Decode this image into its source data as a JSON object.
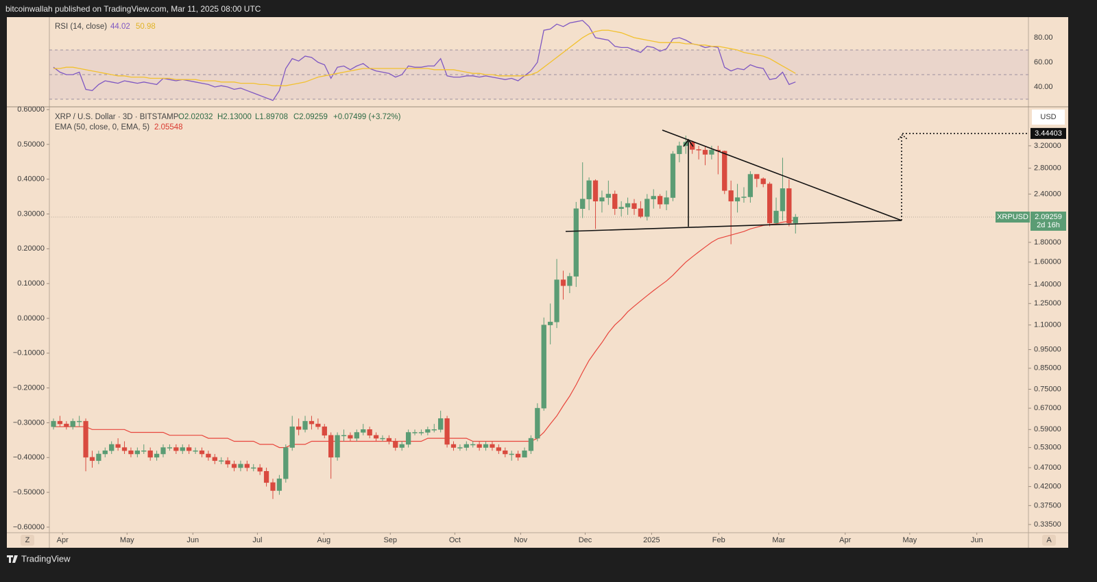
{
  "header": {
    "publisher": "bitcoinwallah published on TradingView.com, Mar 11, 2025 08:00 UTC",
    "brand": "TradingView"
  },
  "chart_data": {
    "type": "candlestick",
    "symbol": "XRP / U.S. Dollar · 3D · BITSTAMP",
    "ohlc_labels": [
      "O2.02032",
      "H2.13000",
      "L1.89708",
      "C2.09259"
    ],
    "change": "+0.07499 (+3.72%)",
    "currency": "USD",
    "ticker": "XRPUSD",
    "countdown": "2d 16h",
    "target": 3.44403,
    "scale_buttons": [
      "Z",
      "A"
    ],
    "up_color": "#5b9c74",
    "down_color": "#d94a3f",
    "log_scale": true,
    "xlim": [
      -0.64,
      151.1
    ],
    "xticks": [
      {
        "value": 1.4,
        "label": "Apr"
      },
      {
        "value": 11.4,
        "label": "May"
      },
      {
        "value": 21.6,
        "label": "Jun"
      },
      {
        "value": 31.6,
        "label": "Jul"
      },
      {
        "value": 41.9,
        "label": "Aug"
      },
      {
        "value": 52.2,
        "label": "Sep"
      },
      {
        "value": 62.2,
        "label": "Oct"
      },
      {
        "value": 72.4,
        "label": "Nov"
      },
      {
        "value": 82.4,
        "label": "Dec"
      },
      {
        "value": 92.7,
        "label": "2025"
      },
      {
        "value": 103.1,
        "label": "Feb"
      },
      {
        "value": 112.4,
        "label": "Mar"
      },
      {
        "value": 122.7,
        "label": "Apr"
      },
      {
        "value": 132.7,
        "label": "May"
      },
      {
        "value": 143.1,
        "label": "Jun"
      }
    ],
    "ylim": [
      0.319,
      4.02
    ],
    "yticks": [
      {
        "value": 3.2,
        "label": "3.20000"
      },
      {
        "value": 2.8,
        "label": "2.80000"
      },
      {
        "value": 2.4,
        "label": "2.40000"
      },
      {
        "value": 1.8,
        "label": "1.80000"
      },
      {
        "value": 1.6,
        "label": "1.60000"
      },
      {
        "value": 1.4,
        "label": "1.40000"
      },
      {
        "value": 1.25,
        "label": "1.25000"
      },
      {
        "value": 1.1,
        "label": "1.10000"
      },
      {
        "value": 0.95,
        "label": "0.95000"
      },
      {
        "value": 0.85,
        "label": "0.85000"
      },
      {
        "value": 0.75,
        "label": "0.75000"
      },
      {
        "value": 0.67,
        "label": "0.67000"
      },
      {
        "value": 0.59,
        "label": "0.59000"
      },
      {
        "value": 0.53,
        "label": "0.53000"
      },
      {
        "value": 0.47,
        "label": "0.47000"
      },
      {
        "value": 0.42,
        "label": "0.42000"
      },
      {
        "value": 0.375,
        "label": "0.37500"
      },
      {
        "value": 0.335,
        "label": "0.33500"
      }
    ],
    "left_ylim": [
      -0.616,
      0.606
    ],
    "left_yticks": [
      {
        "value": 0.6,
        "label": "0.60000"
      },
      {
        "value": 0.5,
        "label": "0.50000"
      },
      {
        "value": 0.4,
        "label": "0.40000"
      },
      {
        "value": 0.3,
        "label": "0.30000"
      },
      {
        "value": 0.2,
        "label": "0.20000"
      },
      {
        "value": 0.1,
        "label": "0.10000"
      },
      {
        "value": 0,
        "label": "0.00000"
      },
      {
        "value": -0.1,
        "label": "−0.10000"
      },
      {
        "value": -0.2,
        "label": "−0.20000"
      },
      {
        "value": -0.3,
        "label": "−0.30000"
      },
      {
        "value": -0.4,
        "label": "−0.40000"
      },
      {
        "value": -0.5,
        "label": "−0.50000"
      },
      {
        "value": -0.6,
        "label": "−0.60000"
      }
    ],
    "candles": {
      "open": [
        0.6,
        0.62,
        0.61,
        0.6,
        0.62,
        0.62,
        0.5,
        0.49,
        0.51,
        0.52,
        0.54,
        0.53,
        0.52,
        0.51,
        0.52,
        0.52,
        0.5,
        0.51,
        0.53,
        0.53,
        0.52,
        0.53,
        0.52,
        0.52,
        0.51,
        0.5,
        0.49,
        0.49,
        0.48,
        0.47,
        0.48,
        0.47,
        0.47,
        0.46,
        0.43,
        0.41,
        0.44,
        0.53,
        0.6,
        0.59,
        0.62,
        0.61,
        0.6,
        0.57,
        0.5,
        0.57,
        0.57,
        0.56,
        0.58,
        0.59,
        0.57,
        0.56,
        0.56,
        0.55,
        0.53,
        0.54,
        0.58,
        0.58,
        0.58,
        0.59,
        0.59,
        0.63,
        0.54,
        0.53,
        0.53,
        0.54,
        0.54,
        0.53,
        0.54,
        0.53,
        0.52,
        0.51,
        0.51,
        0.5,
        0.52,
        0.56,
        0.67,
        1.1,
        1.12,
        1.44,
        1.39,
        1.47,
        2.2,
        2.33,
        2.6,
        2.3,
        2.35,
        2.4,
        2.2,
        2.22,
        2.27,
        2.2,
        2.1,
        2.33,
        2.37,
        2.26,
        2.35,
        3.05,
        3.2,
        3.27,
        3.13,
        3.12,
        3.04,
        3.12,
        3.1,
        2.45,
        2.3,
        2.35,
        2.36,
        2.7,
        2.63,
        2.55,
        2.02,
        2.17,
        2.48,
        2.02032
      ],
      "high": [
        0.63,
        0.64,
        0.62,
        0.63,
        0.64,
        0.63,
        0.52,
        0.52,
        0.53,
        0.55,
        0.56,
        0.55,
        0.53,
        0.53,
        0.54,
        0.53,
        0.52,
        0.54,
        0.54,
        0.54,
        0.54,
        0.54,
        0.53,
        0.53,
        0.52,
        0.51,
        0.5,
        0.5,
        0.49,
        0.49,
        0.49,
        0.48,
        0.48,
        0.47,
        0.44,
        0.45,
        0.54,
        0.64,
        0.63,
        0.64,
        0.64,
        0.63,
        0.61,
        0.58,
        0.58,
        0.59,
        0.58,
        0.59,
        0.61,
        0.6,
        0.58,
        0.57,
        0.57,
        0.56,
        0.55,
        0.59,
        0.59,
        0.59,
        0.6,
        0.61,
        0.66,
        0.64,
        0.55,
        0.54,
        0.55,
        0.55,
        0.55,
        0.55,
        0.55,
        0.54,
        0.53,
        0.52,
        0.52,
        0.53,
        0.57,
        0.69,
        1.15,
        1.25,
        1.63,
        1.52,
        1.5,
        2.29,
        2.9,
        2.65,
        2.62,
        2.45,
        2.6,
        2.45,
        2.3,
        2.35,
        2.33,
        2.3,
        2.4,
        2.47,
        2.4,
        2.45,
        3.1,
        3.28,
        3.4,
        3.3,
        3.2,
        3.18,
        3.2,
        3.2,
        3.11,
        2.6,
        2.55,
        2.5,
        2.75,
        2.7,
        2.65,
        2.58,
        2.35,
        2.98,
        2.62,
        2.13
      ],
      "low": [
        0.59,
        0.6,
        0.59,
        0.59,
        0.6,
        0.46,
        0.47,
        0.48,
        0.5,
        0.51,
        0.52,
        0.51,
        0.5,
        0.5,
        0.51,
        0.49,
        0.49,
        0.5,
        0.52,
        0.51,
        0.51,
        0.51,
        0.51,
        0.5,
        0.49,
        0.48,
        0.48,
        0.47,
        0.46,
        0.46,
        0.46,
        0.46,
        0.45,
        0.42,
        0.39,
        0.4,
        0.43,
        0.52,
        0.57,
        0.58,
        0.59,
        0.59,
        0.56,
        0.44,
        0.49,
        0.55,
        0.55,
        0.55,
        0.57,
        0.56,
        0.55,
        0.55,
        0.54,
        0.52,
        0.52,
        0.53,
        0.57,
        0.57,
        0.57,
        0.58,
        0.58,
        0.53,
        0.52,
        0.52,
        0.52,
        0.53,
        0.52,
        0.52,
        0.52,
        0.51,
        0.5,
        0.49,
        0.49,
        0.5,
        0.51,
        0.55,
        0.66,
        0.98,
        1.08,
        1.28,
        1.33,
        1.38,
        2.08,
        2.18,
        1.95,
        2.15,
        2.25,
        2.12,
        2.1,
        2.12,
        2.12,
        2.08,
        2.05,
        2.2,
        2.2,
        2.18,
        2.3,
        2.9,
        3.05,
        3.05,
        2.95,
        2.85,
        2.95,
        2.7,
        2.4,
        1.78,
        2.15,
        2.28,
        2.28,
        2.5,
        2.5,
        1.98,
        2.0,
        2.05,
        1.98,
        1.89708
      ],
      "close": [
        0.62,
        0.61,
        0.6,
        0.62,
        0.62,
        0.5,
        0.49,
        0.51,
        0.52,
        0.54,
        0.53,
        0.52,
        0.51,
        0.52,
        0.52,
        0.5,
        0.51,
        0.53,
        0.53,
        0.52,
        0.53,
        0.52,
        0.52,
        0.51,
        0.5,
        0.49,
        0.49,
        0.48,
        0.47,
        0.48,
        0.47,
        0.47,
        0.46,
        0.43,
        0.41,
        0.44,
        0.53,
        0.6,
        0.59,
        0.62,
        0.61,
        0.6,
        0.57,
        0.5,
        0.57,
        0.57,
        0.56,
        0.58,
        0.59,
        0.57,
        0.56,
        0.56,
        0.55,
        0.53,
        0.54,
        0.58,
        0.58,
        0.58,
        0.59,
        0.59,
        0.63,
        0.54,
        0.53,
        0.53,
        0.54,
        0.54,
        0.53,
        0.54,
        0.53,
        0.52,
        0.51,
        0.51,
        0.5,
        0.52,
        0.56,
        0.67,
        1.1,
        1.12,
        1.44,
        1.39,
        1.47,
        2.2,
        2.33,
        2.6,
        2.3,
        2.35,
        2.4,
        2.2,
        2.22,
        2.27,
        2.2,
        2.1,
        2.33,
        2.37,
        2.26,
        2.35,
        3.05,
        3.2,
        3.27,
        3.13,
        3.12,
        3.04,
        3.12,
        3.1,
        2.45,
        2.3,
        2.35,
        2.36,
        2.7,
        2.63,
        2.55,
        2.02,
        2.17,
        2.48,
        2.02,
        2.09259
      ]
    },
    "ema": {
      "name": "EMA (50, close, 0, EMA, 5)",
      "color": "#e8453c",
      "values": [
        0.6,
        0.6,
        0.6,
        0.6,
        0.6,
        0.6,
        0.59,
        0.59,
        0.59,
        0.59,
        0.59,
        0.59,
        0.58,
        0.58,
        0.58,
        0.58,
        0.58,
        0.58,
        0.57,
        0.57,
        0.57,
        0.57,
        0.57,
        0.57,
        0.56,
        0.56,
        0.56,
        0.56,
        0.55,
        0.55,
        0.55,
        0.55,
        0.54,
        0.54,
        0.54,
        0.53,
        0.53,
        0.54,
        0.54,
        0.54,
        0.55,
        0.55,
        0.55,
        0.55,
        0.55,
        0.55,
        0.55,
        0.55,
        0.55,
        0.55,
        0.55,
        0.55,
        0.55,
        0.55,
        0.55,
        0.55,
        0.55,
        0.55,
        0.56,
        0.56,
        0.56,
        0.56,
        0.56,
        0.56,
        0.56,
        0.55,
        0.55,
        0.55,
        0.55,
        0.55,
        0.55,
        0.55,
        0.55,
        0.55,
        0.55,
        0.56,
        0.58,
        0.61,
        0.64,
        0.68,
        0.72,
        0.77,
        0.83,
        0.89,
        0.94,
        0.99,
        1.05,
        1.1,
        1.14,
        1.19,
        1.23,
        1.27,
        1.31,
        1.35,
        1.39,
        1.43,
        1.48,
        1.54,
        1.6,
        1.65,
        1.7,
        1.75,
        1.8,
        1.84,
        1.86,
        1.88,
        1.9,
        1.92,
        1.95,
        1.97,
        1.99,
        2.0,
        2.01,
        2.03,
        2.04,
        2.05548
      ]
    },
    "rsi": {
      "name": "RSI (14, close)",
      "ylim": [
        24.4,
        96.7
      ],
      "yticks": [
        {
          "value": 80,
          "label": "80.00"
        },
        {
          "value": 60,
          "label": "60.00"
        },
        {
          "value": 40,
          "label": "40.00"
        }
      ],
      "bands": [
        30,
        50,
        70
      ],
      "rsi_line": {
        "color": "#7e57c2",
        "values": [
          56,
          52,
          50,
          50,
          52,
          38,
          37,
          42,
          45,
          44,
          43,
          45,
          44,
          43,
          44,
          43,
          42,
          47,
          46,
          45,
          46,
          45,
          44,
          43,
          42,
          40,
          41,
          40,
          38,
          39,
          37,
          35,
          33,
          31,
          29,
          37,
          55,
          63,
          61,
          65,
          64,
          60,
          58,
          47,
          56,
          57,
          54,
          57,
          59,
          55,
          53,
          52,
          51,
          48,
          50,
          57,
          56,
          56,
          57,
          57,
          63,
          49,
          48,
          48,
          49,
          49,
          48,
          49,
          48,
          47,
          46,
          47,
          45,
          49,
          53,
          60,
          86,
          87,
          91,
          89,
          92,
          93,
          94,
          89,
          80,
          79,
          78,
          73,
          72,
          72,
          70,
          68,
          73,
          72,
          69,
          71,
          79,
          80,
          78,
          75,
          74,
          72,
          73,
          72,
          56,
          53,
          55,
          54,
          58,
          56,
          55,
          46,
          47,
          52,
          42,
          44.02
        ]
      },
      "ma_line": {
        "color": "#f2c12e",
        "values": [
          55,
          55,
          56,
          56,
          55,
          54,
          53,
          52,
          51,
          50,
          49,
          49,
          48,
          48,
          48,
          47,
          47,
          47,
          47,
          46,
          46,
          46,
          46,
          45,
          45,
          45,
          44,
          44,
          44,
          43,
          43,
          43,
          42,
          42,
          41,
          41,
          41,
          42,
          43,
          44,
          46,
          48,
          49,
          50,
          51,
          52,
          53,
          54,
          55,
          55,
          55,
          55,
          55,
          55,
          55,
          55,
          55,
          55,
          55,
          54,
          54,
          54,
          54,
          53,
          52,
          51,
          51,
          50,
          50,
          49,
          49,
          49,
          49,
          49,
          50,
          52,
          56,
          60,
          64,
          68,
          72,
          76,
          80,
          83,
          85,
          86,
          86,
          85,
          84,
          82,
          80,
          79,
          78,
          77,
          76,
          76,
          76,
          76,
          75,
          75,
          74,
          74,
          73,
          73,
          72,
          71,
          70,
          68,
          67,
          66,
          65,
          63,
          60,
          57,
          54,
          50.98
        ]
      }
    }
  }
}
